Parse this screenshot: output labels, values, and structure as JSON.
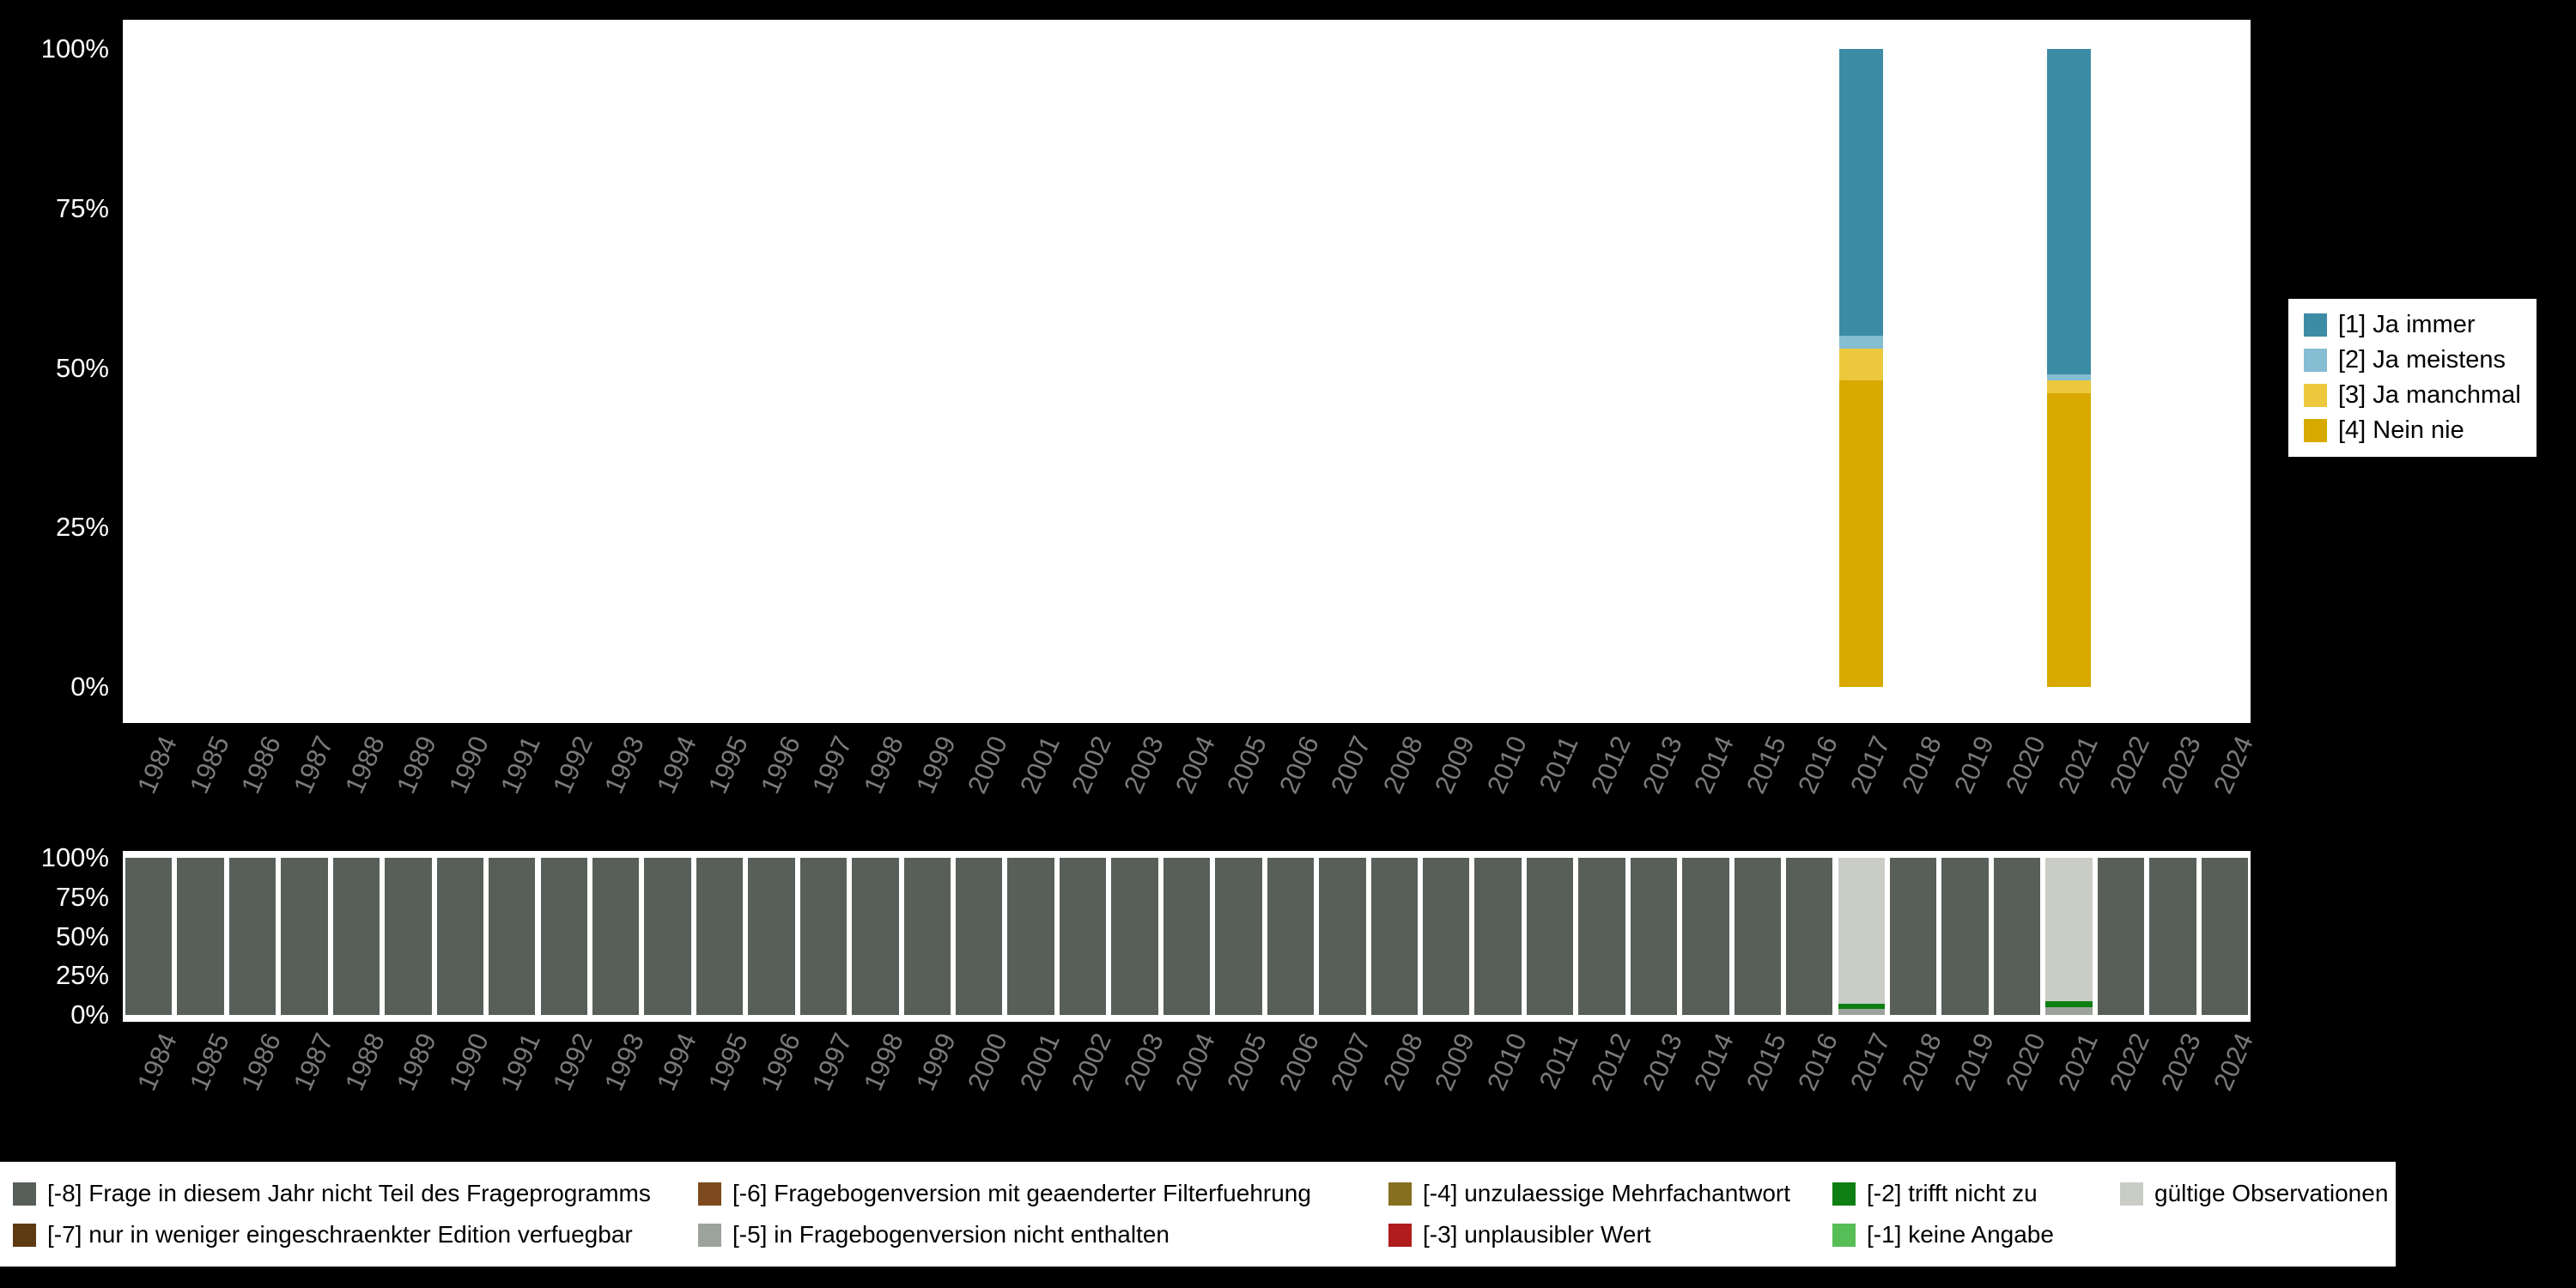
{
  "background": "#000000",
  "chart_data": [
    {
      "id": "main",
      "type": "bar",
      "stacked": true,
      "title": "",
      "xlabel": "",
      "ylabel": "",
      "ylim": [
        0,
        100
      ],
      "yticks": [
        "100%",
        "75%",
        "50%",
        "25%",
        "0%"
      ],
      "grid": false,
      "categories": [
        "1984",
        "1985",
        "1986",
        "1987",
        "1988",
        "1989",
        "1990",
        "1991",
        "1992",
        "1993",
        "1994",
        "1995",
        "1996",
        "1997",
        "1998",
        "1999",
        "2000",
        "2001",
        "2002",
        "2003",
        "2004",
        "2005",
        "2006",
        "2007",
        "2008",
        "2009",
        "2010",
        "2011",
        "2012",
        "2013",
        "2014",
        "2015",
        "2016",
        "2017",
        "2018",
        "2019",
        "2020",
        "2021",
        "2022",
        "2023",
        "2024"
      ],
      "series": [
        {
          "name": "[4] Nein nie",
          "color": "#d8a900",
          "values": {
            "2017": 48,
            "2021": 46
          }
        },
        {
          "name": "[3] Ja manchmal",
          "color": "#ecc83d",
          "values": {
            "2017": 5,
            "2021": 2
          }
        },
        {
          "name": "[2] Ja meistens",
          "color": "#85bdd2",
          "values": {
            "2017": 2,
            "2021": 1
          }
        },
        {
          "name": "[1] Ja immer",
          "color": "#3d8ca6",
          "values": {
            "2017": 45,
            "2021": 51
          }
        }
      ],
      "legend": {
        "position": "right",
        "items": [
          {
            "label": "[1] Ja immer",
            "color": "#3d8ca6"
          },
          {
            "label": "[2] Ja meistens",
            "color": "#85bdd2"
          },
          {
            "label": "[3] Ja manchmal",
            "color": "#ecc83d"
          },
          {
            "label": "[4] Nein nie",
            "color": "#d8a900"
          }
        ]
      }
    },
    {
      "id": "missings",
      "type": "bar",
      "stacked": true,
      "title": "",
      "xlabel": "",
      "ylabel": "",
      "ylim": [
        0,
        100
      ],
      "yticks": [
        "100%",
        "75%",
        "50%",
        "25%",
        "0%"
      ],
      "grid": false,
      "categories": [
        "1984",
        "1985",
        "1986",
        "1987",
        "1988",
        "1989",
        "1990",
        "1991",
        "1992",
        "1993",
        "1994",
        "1995",
        "1996",
        "1997",
        "1998",
        "1999",
        "2000",
        "2001",
        "2002",
        "2003",
        "2004",
        "2005",
        "2006",
        "2007",
        "2008",
        "2009",
        "2010",
        "2011",
        "2012",
        "2013",
        "2014",
        "2015",
        "2016",
        "2017",
        "2018",
        "2019",
        "2020",
        "2021",
        "2022",
        "2023",
        "2024"
      ],
      "series": [
        {
          "name": "[-8] Frage in diesem Jahr nicht Teil des Frageprogramms",
          "color": "#575f58",
          "values": {
            "*": 100,
            "2017": 0,
            "2021": 0
          }
        },
        {
          "name": "[-5] in Fragebogenversion nicht enthalten",
          "color": "#9ca29c",
          "values": {
            "2017": 4,
            "2021": 5
          }
        },
        {
          "name": "[-2] trifft nicht zu",
          "color": "#0e7f12",
          "values": {
            "2017": 3,
            "2021": 4
          }
        },
        {
          "name": "gültige Observationen",
          "color": "#c9cdc5",
          "values": {
            "2017": 93,
            "2021": 91
          }
        }
      ],
      "legend": {
        "position": "bottom",
        "items": [
          {
            "label": "[-8] Frage in diesem Jahr nicht Teil des Frageprogramms",
            "color": "#575f58"
          },
          {
            "label": "[-6] Fragebogenversion mit geaenderter Filterfuehrung",
            "color": "#7c4a1e"
          },
          {
            "label": "[-4] unzulaessige Mehrfachantwort",
            "color": "#86701f"
          },
          {
            "label": "[-2] trifft nicht zu",
            "color": "#0e7f12"
          },
          {
            "label": "gültige Observationen",
            "color": "#c9cdc5"
          },
          {
            "label": "[-7] nur in weniger eingeschraenkter Edition verfuegbar",
            "color": "#5e3a12"
          },
          {
            "label": "[-5] in Fragebogenversion nicht enthalten",
            "color": "#9ca29c"
          },
          {
            "label": "[-3] unplausibler Wert",
            "color": "#b01c1c"
          },
          {
            "label": "[-1] keine Angabe",
            "color": "#57bd57"
          }
        ]
      }
    }
  ]
}
